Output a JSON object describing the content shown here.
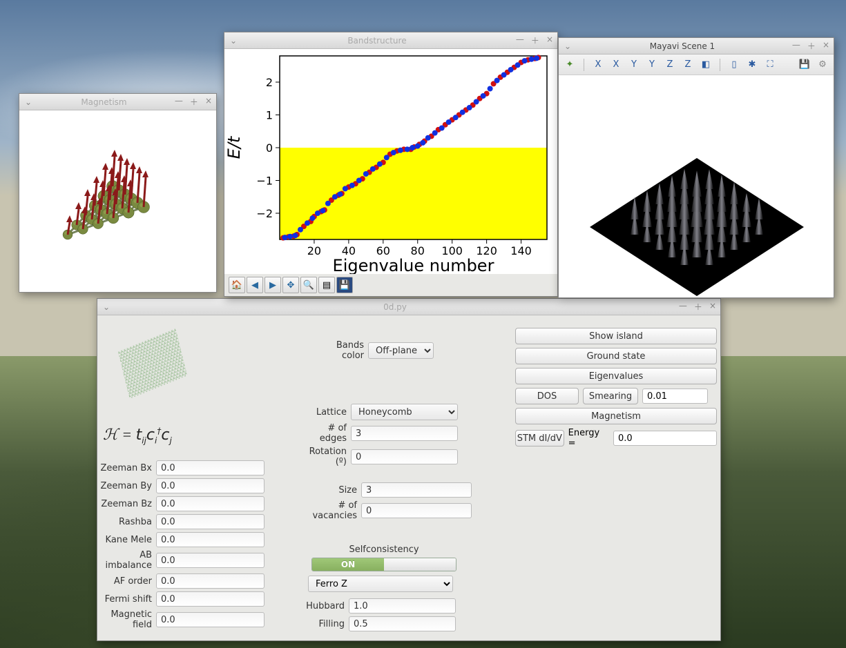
{
  "desktop": {
    "wallpaper": "mountain-sky"
  },
  "main_panel": {
    "title": "0d.py",
    "hamiltonian_tex": "ℋ = tᵢⱼ cᵢ† cⱼ",
    "left_fields": [
      {
        "label": "Zeeman Bx",
        "value": "0.0"
      },
      {
        "label": "Zeeman By",
        "value": "0.0"
      },
      {
        "label": "Zeeman Bz",
        "value": "0.0"
      },
      {
        "label": "Rashba",
        "value": "0.0"
      },
      {
        "label": "Kane Mele",
        "value": "0.0"
      },
      {
        "label": "AB imbalance",
        "value": "0.0"
      },
      {
        "label": "AF order",
        "value": "0.0"
      },
      {
        "label": "Fermi shift",
        "value": "0.0"
      },
      {
        "label": "Magnetic field",
        "value": "0.0"
      }
    ],
    "bands_color": {
      "label": "Bands color",
      "value": "Off-plane S"
    },
    "lattice_fields": [
      {
        "label": "Lattice",
        "value": "Honeycomb",
        "type": "select"
      },
      {
        "label": "# of edges",
        "value": "3",
        "type": "text"
      },
      {
        "label": "Rotation (º)",
        "value": "0",
        "type": "text"
      }
    ],
    "size_fields": [
      {
        "label": "Size",
        "value": "3"
      },
      {
        "label": "# of vacancies",
        "value": "0"
      }
    ],
    "selfconsistency": {
      "label": "Selfconsistency",
      "toggle": "ON",
      "initial_guess": "Ferro Z"
    },
    "sc_fields": [
      {
        "label": "Hubbard",
        "value": "1.0"
      },
      {
        "label": "Filling",
        "value": "0.5"
      }
    ],
    "buttons": {
      "show_island": "Show island",
      "ground_state": "Ground state",
      "eigenvalues": "Eigenvalues",
      "dos": "DOS",
      "smearing": "Smearing",
      "smearing_value": "0.01",
      "magnetism": "Magnetism",
      "stm": "STM dI/dV",
      "energy_label": "Energy =",
      "energy_value": "0.0"
    }
  },
  "magnetism_window": {
    "title": "Magnetism",
    "arrow_color": "#8b1a1a",
    "sphere_color": "#7a8a40"
  },
  "bandstructure_window": {
    "title": "Bandstructure",
    "chart": {
      "type": "scatter",
      "ylabel": "E/t",
      "xlabel": "Eigenvalue number",
      "xlim": [
        0,
        155
      ],
      "ylim": [
        -2.8,
        2.8
      ],
      "xticks": [
        20,
        40,
        60,
        80,
        100,
        120,
        140
      ],
      "yticks": [
        -2,
        -1,
        0,
        1,
        2
      ],
      "fill_below_color": "#ffff00",
      "series": [
        {
          "color": "#d01010",
          "points": [
            [
              2,
              -2.75
            ],
            [
              5,
              -2.72
            ],
            [
              8,
              -2.7
            ],
            [
              10,
              -2.65
            ],
            [
              14,
              -2.4
            ],
            [
              18,
              -2.25
            ],
            [
              20,
              -2.1
            ],
            [
              24,
              -1.95
            ],
            [
              26,
              -1.9
            ],
            [
              30,
              -1.6
            ],
            [
              34,
              -1.45
            ],
            [
              36,
              -1.4
            ],
            [
              40,
              -1.2
            ],
            [
              44,
              -1.1
            ],
            [
              48,
              -0.95
            ],
            [
              52,
              -0.75
            ],
            [
              56,
              -0.6
            ],
            [
              60,
              -0.45
            ],
            [
              64,
              -0.2
            ],
            [
              68,
              -0.1
            ],
            [
              72,
              -0.05
            ],
            [
              76,
              -0.05
            ],
            [
              78,
              0.02
            ],
            [
              81,
              0.1
            ],
            [
              84,
              0.2
            ],
            [
              88,
              0.35
            ],
            [
              92,
              0.55
            ],
            [
              96,
              0.7
            ],
            [
              100,
              0.85
            ],
            [
              104,
              1.0
            ],
            [
              108,
              1.15
            ],
            [
              112,
              1.3
            ],
            [
              116,
              1.5
            ],
            [
              120,
              1.65
            ],
            [
              124,
              1.95
            ],
            [
              128,
              2.15
            ],
            [
              132,
              2.3
            ],
            [
              136,
              2.45
            ],
            [
              140,
              2.6
            ],
            [
              144,
              2.68
            ],
            [
              148,
              2.72
            ],
            [
              150,
              2.75
            ]
          ]
        },
        {
          "color": "#1030e0",
          "points": [
            [
              3,
              -2.74
            ],
            [
              6,
              -2.71
            ],
            [
              9,
              -2.68
            ],
            [
              12,
              -2.5
            ],
            [
              16,
              -2.3
            ],
            [
              19,
              -2.15
            ],
            [
              22,
              -2.0
            ],
            [
              25,
              -1.92
            ],
            [
              28,
              -1.7
            ],
            [
              32,
              -1.5
            ],
            [
              35,
              -1.42
            ],
            [
              38,
              -1.25
            ],
            [
              42,
              -1.15
            ],
            [
              46,
              -1.0
            ],
            [
              50,
              -0.8
            ],
            [
              54,
              -0.65
            ],
            [
              58,
              -0.5
            ],
            [
              62,
              -0.3
            ],
            [
              66,
              -0.15
            ],
            [
              70,
              -0.08
            ],
            [
              74,
              -0.05
            ],
            [
              77,
              0.0
            ],
            [
              80,
              0.05
            ],
            [
              83,
              0.15
            ],
            [
              86,
              0.3
            ],
            [
              90,
              0.45
            ],
            [
              94,
              0.6
            ],
            [
              98,
              0.78
            ],
            [
              102,
              0.92
            ],
            [
              106,
              1.08
            ],
            [
              110,
              1.22
            ],
            [
              114,
              1.4
            ],
            [
              118,
              1.58
            ],
            [
              122,
              1.8
            ],
            [
              126,
              2.05
            ],
            [
              130,
              2.22
            ],
            [
              134,
              2.38
            ],
            [
              138,
              2.52
            ],
            [
              142,
              2.65
            ],
            [
              146,
              2.7
            ],
            [
              149,
              2.73
            ]
          ]
        }
      ],
      "label_fontsize": 24,
      "tick_fontsize": 16
    },
    "toolbar": [
      "home",
      "back",
      "forward",
      "pan",
      "zoom",
      "subplots",
      "save"
    ]
  },
  "mayavi_window": {
    "title": "Mayavi Scene 1",
    "toolbar": [
      "axes-3d",
      "view-x",
      "view-x2",
      "view-y",
      "view-y2",
      "view-z",
      "view-z2",
      "iso",
      "fullscreen",
      "coord",
      "maximize",
      "save",
      "settings"
    ],
    "surface_color": "#1a1a1a",
    "spike_highlight": "#808088"
  }
}
